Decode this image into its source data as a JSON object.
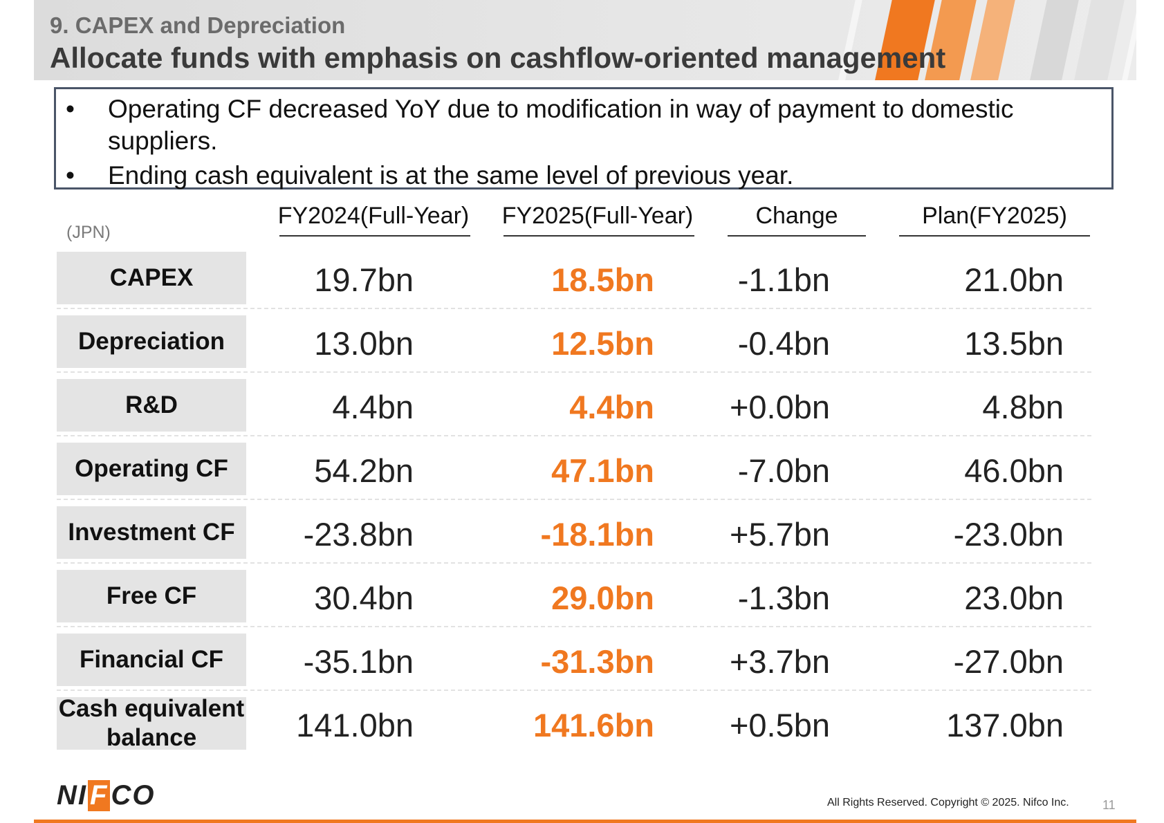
{
  "header": {
    "section_label": "9. CAPEX and Depreciation",
    "title": "Allocate funds with emphasis on cashflow-oriented management"
  },
  "summary": {
    "bullet_glyph": "•",
    "bullets": [
      "Operating CF decreased YoY due to modification in way of payment to domestic suppliers.",
      "Ending cash equivalent is at the same level of previous year."
    ]
  },
  "table": {
    "currency_note": "(JPN)",
    "columns": [
      "FY2024(Full-Year)",
      "FY2025(Full-Year)",
      "Change",
      "Plan(FY2025)"
    ],
    "rows": [
      {
        "label": "CAPEX",
        "values": [
          "19.7bn",
          "18.5bn",
          "-1.1bn",
          "21.0bn"
        ]
      },
      {
        "label": "Depreciation",
        "values": [
          "13.0bn",
          "12.5bn",
          "-0.4bn",
          "13.5bn"
        ]
      },
      {
        "label": "R&D",
        "values": [
          "4.4bn",
          "4.4bn",
          "+0.0bn",
          "4.8bn"
        ]
      },
      {
        "label": "Operating CF",
        "values": [
          "54.2bn",
          "47.1bn",
          "-7.0bn",
          "46.0bn"
        ]
      },
      {
        "label": "Investment CF",
        "values": [
          "-23.8bn",
          "-18.1bn",
          "+5.7bn",
          "-23.0bn"
        ]
      },
      {
        "label": "Free CF",
        "values": [
          "30.4bn",
          "29.0bn",
          "-1.3bn",
          "23.0bn"
        ]
      },
      {
        "label": "Financial CF",
        "values": [
          "-35.1bn",
          "-31.3bn",
          "+3.7bn",
          "-27.0bn"
        ]
      },
      {
        "label": "Cash equivalent balance",
        "values": [
          "141.0bn",
          "141.6bn",
          "+0.5bn",
          "137.0bn"
        ]
      }
    ]
  },
  "footer": {
    "logo_text": "NIFCO",
    "copyright": "All Rights Reserved. Copyright © 2025. Nifco Inc.",
    "page_number": "11"
  },
  "colors": {
    "accent": "#f07820",
    "label_bg": "#e4e4e4",
    "box_border": "#4a5568"
  }
}
